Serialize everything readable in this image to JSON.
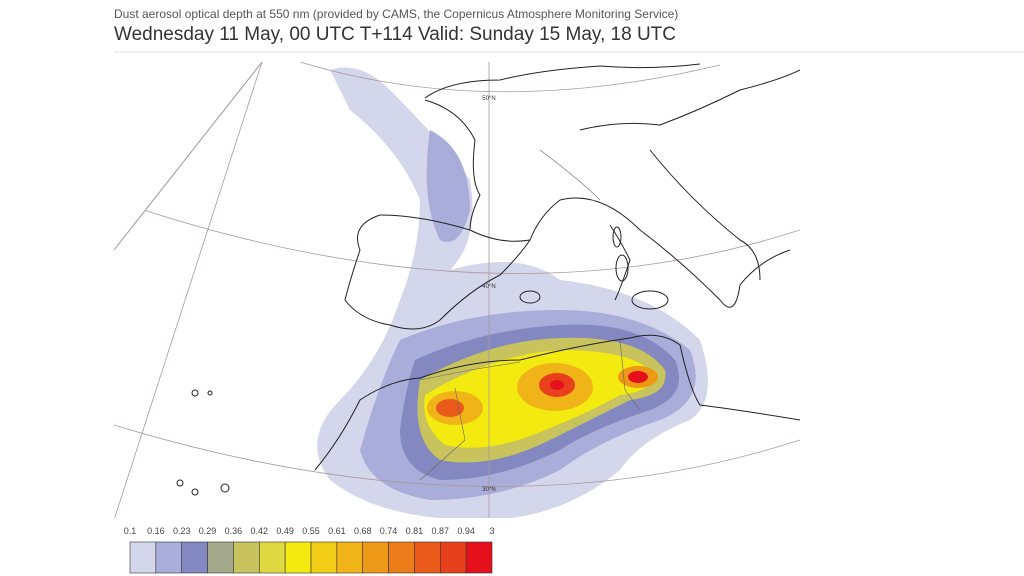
{
  "header": {
    "subtitle": "Dust aerosol optical depth at 550 nm (provided by CAMS, the Copernicus Atmosphere Monitoring Service)",
    "title": "Wednesday 11 May, 00 UTC T+114 Valid: Sunday 15 May, 18 UTC"
  },
  "map": {
    "latitude_labels": [
      "50°N",
      "40°N",
      "30°N"
    ]
  },
  "legend": {
    "labels": [
      "0.1",
      "0.16",
      "0.23",
      "0.29",
      "0.36",
      "0.42",
      "0.49",
      "0.55",
      "0.61",
      "0.68",
      "0.74",
      "0.81",
      "0.87",
      "0.94",
      "3"
    ],
    "colors": [
      "#d4d6ec",
      "#a9add9",
      "#8389c0",
      "#a4a98a",
      "#c8c35c",
      "#e0d840",
      "#f3ea10",
      "#f2cd15",
      "#f0b418",
      "#ee9818",
      "#ec7c18",
      "#ea5a1a",
      "#e8401c",
      "#e5101c"
    ]
  }
}
